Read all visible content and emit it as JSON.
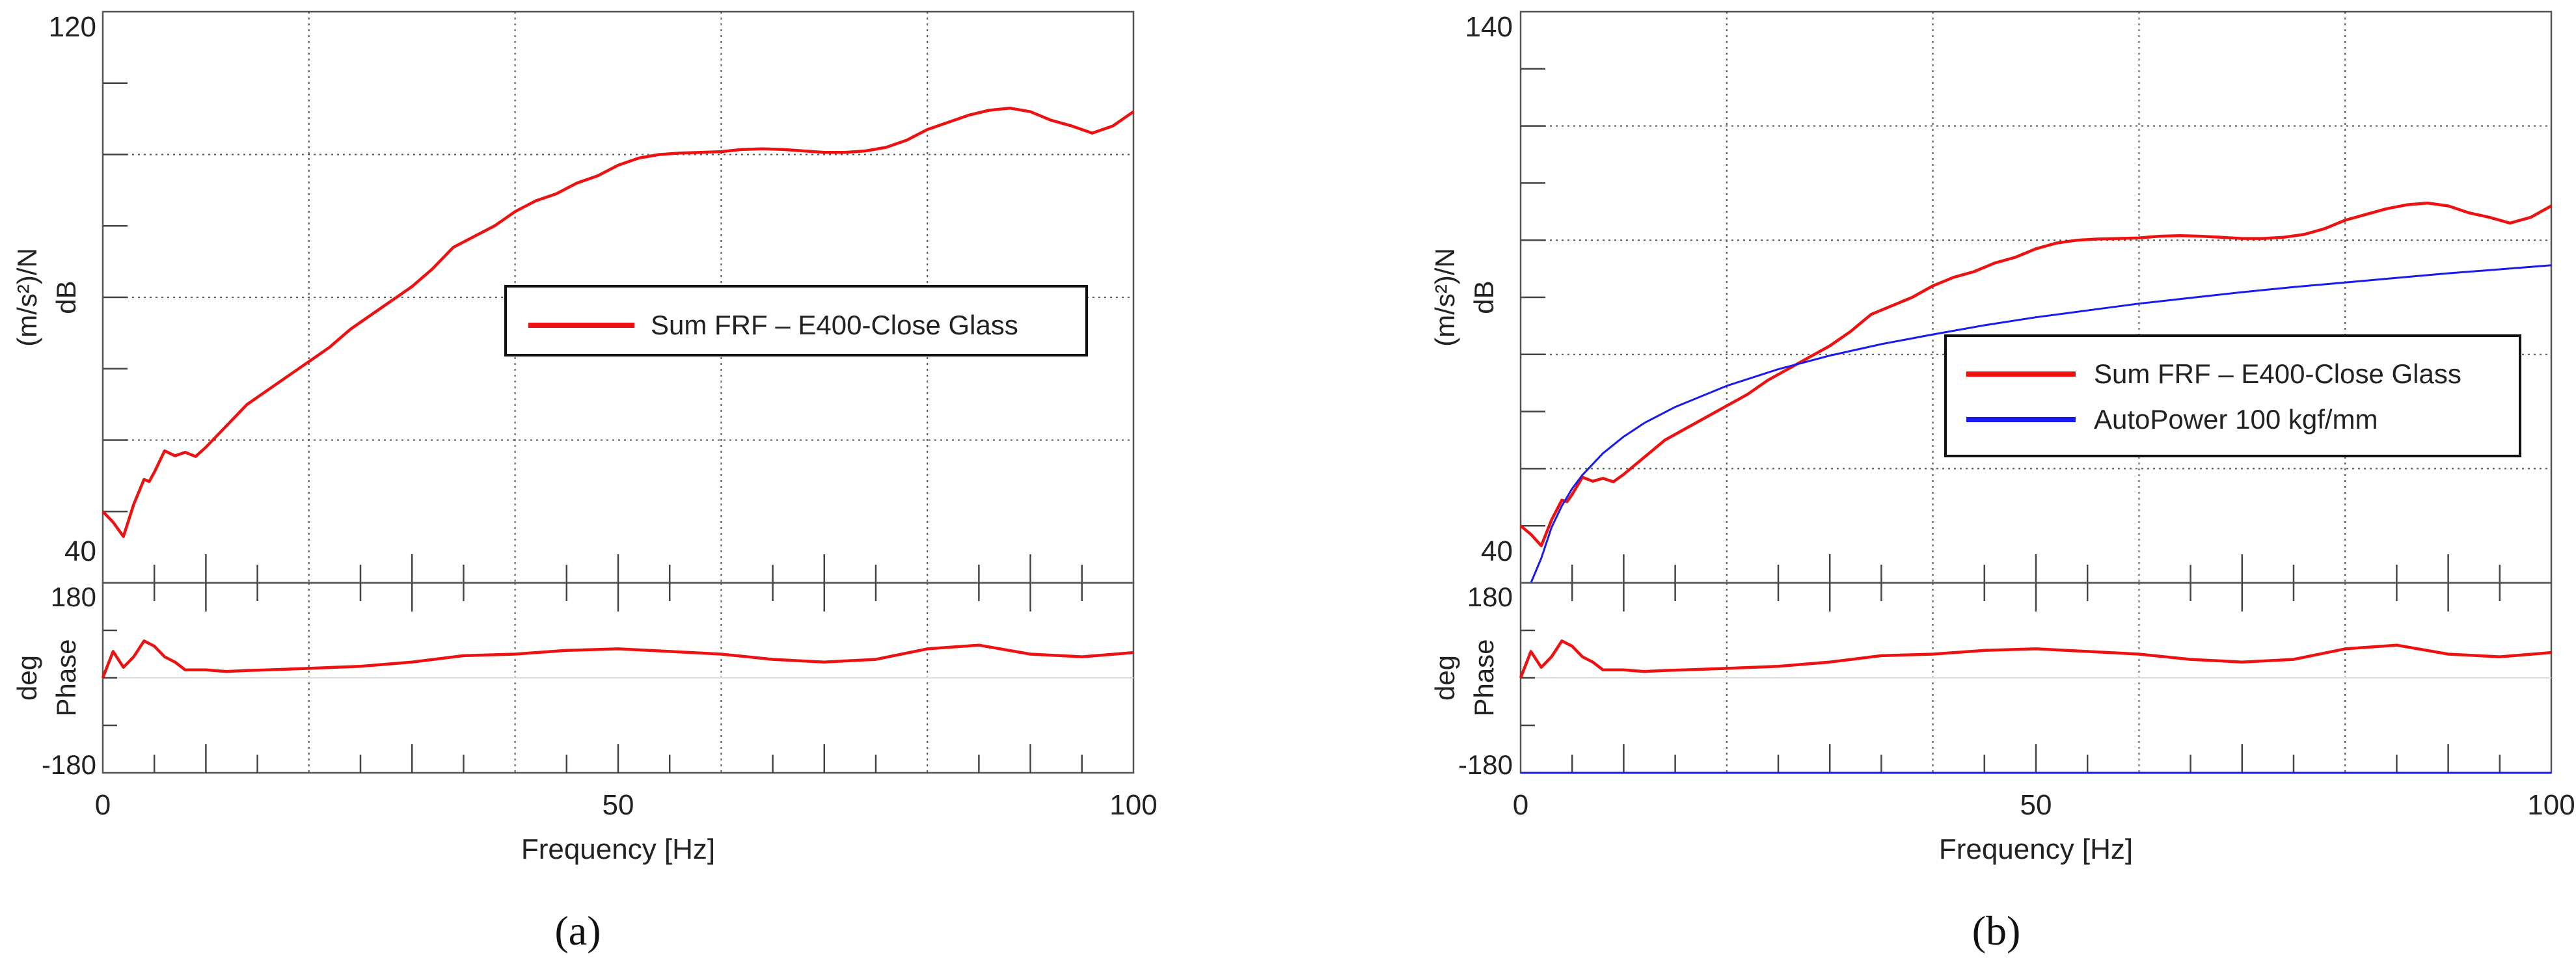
{
  "chart_data": [
    {
      "type": "line",
      "panel_label": "(a)",
      "xlabel": "Frequency [Hz]",
      "x_ticks": [
        0,
        50,
        100
      ],
      "xlim": [
        0,
        100
      ],
      "magnitude": {
        "ylabel_unit": "(m/s²)/N",
        "ylabel_scale": "dB",
        "ylim": [
          40,
          120
        ],
        "y_tick_labels": [
          "40",
          "120"
        ],
        "grid": "dotted",
        "legend_position": "center-right",
        "series": [
          {
            "name": "Sum FRF – E400-Close Glass",
            "color": "#ee1111",
            "x": [
              0,
              1,
              2,
              3,
              4,
              4.5,
              5,
              6,
              7,
              8,
              9,
              10,
              12,
              14,
              16,
              18,
              20,
              22,
              24,
              26,
              28,
              30,
              32,
              34,
              36,
              38,
              40,
              42,
              44,
              46,
              48,
              50,
              52,
              54,
              56,
              58,
              60,
              62,
              64,
              66,
              68,
              70,
              72,
              74,
              76,
              78,
              80,
              82,
              84,
              86,
              88,
              90,
              92,
              94,
              96,
              98,
              100
            ],
            "y": [
              50,
              48.5,
              46.5,
              51,
              54.5,
              54.2,
              55.5,
              58.5,
              57.8,
              58.3,
              57.7,
              59,
              62,
              65,
              67,
              69,
              71,
              73,
              75.5,
              77.5,
              79.5,
              81.5,
              84,
              87,
              88.5,
              90,
              92,
              93.5,
              94.5,
              96,
              97,
              98.5,
              99.5,
              100,
              100.2,
              100.3,
              100.4,
              100.7,
              100.8,
              100.7,
              100.5,
              100.3,
              100.3,
              100.5,
              101,
              102,
              103.5,
              104.5,
              105.5,
              106.2,
              106.5,
              106,
              104.8,
              104,
              103,
              104,
              106
            ]
          }
        ]
      },
      "phase": {
        "ylabel_unit": "deg",
        "ylabel_name": "Phase",
        "ylim": [
          -180,
          180
        ],
        "y_tick_labels": [
          "180",
          "-180"
        ],
        "series": [
          {
            "name": "Sum FRF – E400-Close Glass",
            "color": "#ee1111",
            "x": [
              0,
              1,
              2,
              3,
              4,
              5,
              6,
              7,
              8,
              9,
              10,
              12,
              14,
              16,
              20,
              25,
              30,
              35,
              40,
              45,
              50,
              55,
              60,
              65,
              70,
              75,
              80,
              85,
              90,
              95,
              100
            ],
            "y": [
              0,
              50,
              20,
              40,
              70,
              60,
              40,
              30,
              15,
              15,
              15,
              12,
              14,
              15,
              18,
              22,
              30,
              42,
              45,
              52,
              55,
              50,
              45,
              35,
              30,
              35,
              55,
              62,
              45,
              40,
              48
            ]
          }
        ]
      }
    },
    {
      "type": "line",
      "panel_label": "(b)",
      "xlabel": "Frequency [Hz]",
      "x_ticks": [
        0,
        50,
        100
      ],
      "xlim": [
        0,
        100
      ],
      "magnitude": {
        "ylabel_unit": "(m/s²)/N",
        "ylabel_scale": "dB",
        "ylim": [
          40,
          140
        ],
        "y_tick_labels": [
          "40",
          "140"
        ],
        "grid": "dotted",
        "legend_position": "center-right",
        "series": [
          {
            "name": "Sum FRF – E400-Close Glass",
            "color": "#ee1111",
            "x": [
              0,
              1,
              2,
              3,
              4,
              4.5,
              5,
              6,
              7,
              8,
              9,
              10,
              12,
              14,
              16,
              18,
              20,
              22,
              24,
              26,
              28,
              30,
              32,
              34,
              36,
              38,
              40,
              42,
              44,
              46,
              48,
              50,
              52,
              54,
              56,
              58,
              60,
              62,
              64,
              66,
              68,
              70,
              72,
              74,
              76,
              78,
              80,
              82,
              84,
              86,
              88,
              90,
              92,
              94,
              96,
              98,
              100
            ],
            "y": [
              50,
              48.5,
              46.5,
              51,
              54.5,
              54.2,
              55.5,
              58.5,
              57.8,
              58.3,
              57.7,
              59,
              62,
              65,
              67,
              69,
              71,
              73,
              75.5,
              77.5,
              79.5,
              81.5,
              84,
              87,
              88.5,
              90,
              92,
              93.5,
              94.5,
              96,
              97,
              98.5,
              99.5,
              100,
              100.2,
              100.3,
              100.4,
              100.7,
              100.8,
              100.7,
              100.5,
              100.3,
              100.3,
              100.5,
              101,
              102,
              103.5,
              104.5,
              105.5,
              106.2,
              106.5,
              106,
              104.8,
              104,
              103,
              104,
              106
            ]
          },
          {
            "name": "AutoPower 100 kgf/mm",
            "color": "#1a1aee",
            "x": [
              1,
              2,
              3,
              4,
              5,
              6,
              8,
              10,
              12,
              15,
              20,
              25,
              30,
              35,
              40,
              45,
              50,
              55,
              60,
              65,
              70,
              75,
              80,
              85,
              90,
              95,
              100
            ],
            "y": [
              35,
              44.3,
              49.7,
              53.5,
              56.5,
              58.9,
              62.7,
              65.6,
              68,
              70.8,
              74.5,
              77.4,
              79.8,
              81.8,
              83.5,
              85.1,
              86.5,
              87.7,
              88.9,
              89.9,
              90.9,
              91.8,
              92.6,
              93.4,
              94.2,
              94.9,
              95.6
            ]
          }
        ]
      },
      "phase": {
        "ylabel_unit": "deg",
        "ylabel_name": "Phase",
        "ylim": [
          -180,
          180
        ],
        "y_tick_labels": [
          "180",
          "-180"
        ],
        "series": [
          {
            "name": "Sum FRF – E400-Close Glass",
            "color": "#ee1111",
            "x": [
              0,
              1,
              2,
              3,
              4,
              5,
              6,
              7,
              8,
              9,
              10,
              12,
              14,
              16,
              20,
              25,
              30,
              35,
              40,
              45,
              50,
              55,
              60,
              65,
              70,
              75,
              80,
              85,
              90,
              95,
              100
            ],
            "y": [
              0,
              50,
              20,
              40,
              70,
              60,
              40,
              30,
              15,
              15,
              15,
              12,
              14,
              15,
              18,
              22,
              30,
              42,
              45,
              52,
              55,
              50,
              45,
              35,
              30,
              35,
              55,
              62,
              45,
              40,
              48
            ]
          },
          {
            "name": "AutoPower 100 kgf/mm",
            "color": "#1a1aee",
            "x": [
              0,
              100
            ],
            "y": [
              -180,
              -180
            ]
          }
        ]
      }
    }
  ]
}
